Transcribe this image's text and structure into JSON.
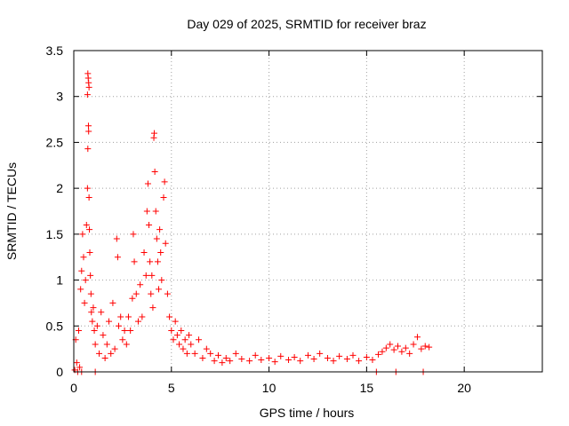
{
  "chart_data": {
    "type": "scatter",
    "title": "Day 029 of 2025, SRMTID for receiver braz",
    "xlabel": "GPS time / hours",
    "ylabel": "SRMTID / TECUs",
    "xlim": [
      0,
      24
    ],
    "ylim": [
      0,
      3.5
    ],
    "xticks": [
      0,
      5,
      10,
      15,
      20
    ],
    "xtick_labels": [
      "0",
      "5",
      "10",
      "15",
      "20"
    ],
    "yticks": [
      0,
      0.5,
      1,
      1.5,
      2,
      2.5,
      3,
      3.5
    ],
    "ytick_labels": [
      "0",
      "0.5",
      "1",
      "1.5",
      "2",
      "2.5",
      "3",
      "3.5"
    ],
    "grid": true,
    "marker": "+",
    "color": "#ff0000",
    "series": [
      {
        "name": "braz",
        "points": [
          [
            0.05,
            0.02
          ],
          [
            0.1,
            0.35
          ],
          [
            0.15,
            0.1
          ],
          [
            0.2,
            0.0
          ],
          [
            0.25,
            0.45
          ],
          [
            0.3,
            0.05
          ],
          [
            0.35,
            0.9
          ],
          [
            0.4,
            1.1
          ],
          [
            0.45,
            1.5
          ],
          [
            0.5,
            1.25
          ],
          [
            0.55,
            0.75
          ],
          [
            0.6,
            1.0
          ],
          [
            0.65,
            1.6
          ],
          [
            0.7,
            2.0
          ],
          [
            0.72,
            3.25
          ],
          [
            0.74,
            3.2
          ],
          [
            0.76,
            3.15
          ],
          [
            0.78,
            3.1
          ],
          [
            0.7,
            3.02
          ],
          [
            0.75,
            2.68
          ],
          [
            0.76,
            2.62
          ],
          [
            0.72,
            2.43
          ],
          [
            0.78,
            1.9
          ],
          [
            0.8,
            1.55
          ],
          [
            0.82,
            1.3
          ],
          [
            0.85,
            1.05
          ],
          [
            0.88,
            0.85
          ],
          [
            0.9,
            0.65
          ],
          [
            0.95,
            0.55
          ],
          [
            1.0,
            0.7
          ],
          [
            1.05,
            0.45
          ],
          [
            1.1,
            0.3
          ],
          [
            1.2,
            0.5
          ],
          [
            1.3,
            0.2
          ],
          [
            1.4,
            0.65
          ],
          [
            1.5,
            0.4
          ],
          [
            1.6,
            0.15
          ],
          [
            1.7,
            0.3
          ],
          [
            1.8,
            0.55
          ],
          [
            1.9,
            0.2
          ],
          [
            2.0,
            0.75
          ],
          [
            2.1,
            0.25
          ],
          [
            2.2,
            1.45
          ],
          [
            2.25,
            1.25
          ],
          [
            2.3,
            0.5
          ],
          [
            2.4,
            0.6
          ],
          [
            2.5,
            0.35
          ],
          [
            2.6,
            0.45
          ],
          [
            2.7,
            0.3
          ],
          [
            2.8,
            0.6
          ],
          [
            2.9,
            0.45
          ],
          [
            3.0,
            0.8
          ],
          [
            3.05,
            1.5
          ],
          [
            3.1,
            1.2
          ],
          [
            3.2,
            0.85
          ],
          [
            3.3,
            0.55
          ],
          [
            3.4,
            0.95
          ],
          [
            3.5,
            0.6
          ],
          [
            3.6,
            1.3
          ],
          [
            3.7,
            1.05
          ],
          [
            3.75,
            1.75
          ],
          [
            3.8,
            2.05
          ],
          [
            3.85,
            1.6
          ],
          [
            3.9,
            1.2
          ],
          [
            3.95,
            0.85
          ],
          [
            4.0,
            1.05
          ],
          [
            4.05,
            0.7
          ],
          [
            4.1,
            2.55
          ],
          [
            4.12,
            2.6
          ],
          [
            4.15,
            2.18
          ],
          [
            4.2,
            1.75
          ],
          [
            4.25,
            1.45
          ],
          [
            4.3,
            1.2
          ],
          [
            4.35,
            0.9
          ],
          [
            4.4,
            1.55
          ],
          [
            4.45,
            1.3
          ],
          [
            4.5,
            1.0
          ],
          [
            4.6,
            1.9
          ],
          [
            4.65,
            2.07
          ],
          [
            4.7,
            1.4
          ],
          [
            4.8,
            0.85
          ],
          [
            4.9,
            0.6
          ],
          [
            5.0,
            0.45
          ],
          [
            5.1,
            0.35
          ],
          [
            5.2,
            0.55
          ],
          [
            5.3,
            0.4
          ],
          [
            5.4,
            0.3
          ],
          [
            5.5,
            0.45
          ],
          [
            5.6,
            0.25
          ],
          [
            5.7,
            0.35
          ],
          [
            5.8,
            0.2
          ],
          [
            5.9,
            0.4
          ],
          [
            6.0,
            0.3
          ],
          [
            6.2,
            0.2
          ],
          [
            6.4,
            0.35
          ],
          [
            6.6,
            0.15
          ],
          [
            6.8,
            0.25
          ],
          [
            7.0,
            0.2
          ],
          [
            7.2,
            0.12
          ],
          [
            7.4,
            0.18
          ],
          [
            7.6,
            0.1
          ],
          [
            7.8,
            0.15
          ],
          [
            8.0,
            0.12
          ],
          [
            8.3,
            0.2
          ],
          [
            8.6,
            0.14
          ],
          [
            9.0,
            0.12
          ],
          [
            9.3,
            0.18
          ],
          [
            9.6,
            0.13
          ],
          [
            10.0,
            0.15
          ],
          [
            10.3,
            0.11
          ],
          [
            10.6,
            0.17
          ],
          [
            11.0,
            0.13
          ],
          [
            11.3,
            0.16
          ],
          [
            11.6,
            0.12
          ],
          [
            12.0,
            0.18
          ],
          [
            12.3,
            0.14
          ],
          [
            12.6,
            0.2
          ],
          [
            13.0,
            0.15
          ],
          [
            13.3,
            0.12
          ],
          [
            13.6,
            0.17
          ],
          [
            14.0,
            0.14
          ],
          [
            14.3,
            0.18
          ],
          [
            14.6,
            0.12
          ],
          [
            15.0,
            0.16
          ],
          [
            15.3,
            0.13
          ],
          [
            15.6,
            0.19
          ],
          [
            15.8,
            0.22
          ],
          [
            16.0,
            0.26
          ],
          [
            16.2,
            0.3
          ],
          [
            16.4,
            0.24
          ],
          [
            16.6,
            0.28
          ],
          [
            16.8,
            0.22
          ],
          [
            17.0,
            0.26
          ],
          [
            17.2,
            0.2
          ],
          [
            17.4,
            0.3
          ],
          [
            17.6,
            0.38
          ],
          [
            17.8,
            0.25
          ],
          [
            18.0,
            0.28
          ],
          [
            18.2,
            0.27
          ],
          [
            15.5,
            0.0
          ],
          [
            16.5,
            0.0
          ],
          [
            17.9,
            0.0
          ],
          [
            1.1,
            0.0
          ],
          [
            0.4,
            0.0
          ]
        ]
      }
    ]
  }
}
